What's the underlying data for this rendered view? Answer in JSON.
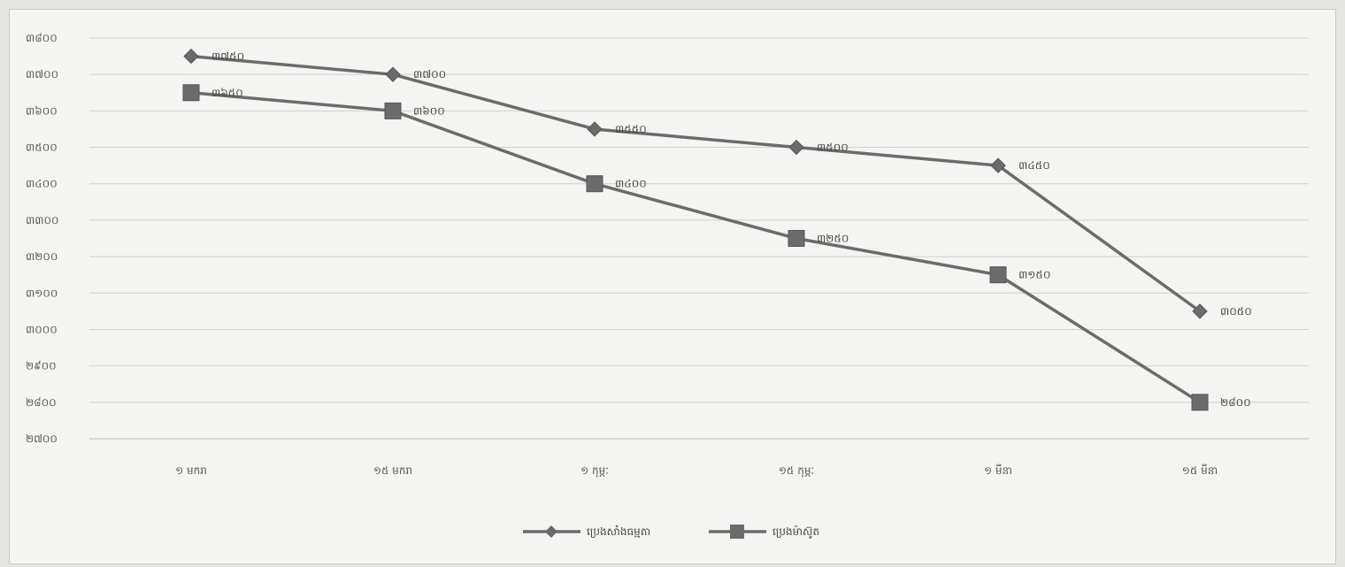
{
  "chart_data": {
    "type": "line",
    "categories": [
      "១ មករា",
      "១៥ មករា",
      "១ កុម្ភៈ",
      "១៥ កុម្ភៈ",
      "១ មីនា",
      "១៥ មីនា"
    ],
    "y_tick_labels": [
      "៣៨០០",
      "៣៧០០",
      "៣៦០០",
      "៣៥០០",
      "៣៤០០",
      "៣៣០០",
      "៣២០០",
      "៣១០០",
      "៣០០០",
      "២៩០០",
      "២៨០០",
      "២៧០០"
    ],
    "ylim": [
      2700,
      3800
    ],
    "grid": true,
    "legend_position": "bottom",
    "series": [
      {
        "name": "ប្រេងសាំងធម្មតា",
        "marker": "diamond",
        "values": [
          3750,
          3700,
          3550,
          3500,
          3450,
          3050
        ],
        "labels": [
          "៣៧៥០",
          "៣៧០០",
          "៣៥៥០",
          "៣៥០០",
          "៣៤៥០",
          "៣០៥០"
        ]
      },
      {
        "name": "ប្រេងម៉ាស៊ូត",
        "marker": "square",
        "values": [
          3650,
          3600,
          3400,
          3250,
          3150,
          2800
        ],
        "labels": [
          "៣៦៥០",
          "៣៦០០",
          "៣៤០០",
          "៣២៥០",
          "៣១៥០",
          "២៨០០"
        ]
      }
    ],
    "colors": {
      "line": "#6b6b6b",
      "marker": "#6b6b6b",
      "grid": "#cfcfcf"
    }
  }
}
